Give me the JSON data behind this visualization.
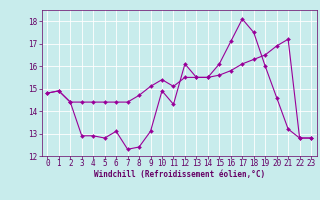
{
  "xlabel": "Windchill (Refroidissement éolien,°C)",
  "background_color": "#c8ecec",
  "line_color": "#990099",
  "grid_color": "#ffffff",
  "x": [
    0,
    1,
    2,
    3,
    4,
    5,
    6,
    7,
    8,
    9,
    10,
    11,
    12,
    13,
    14,
    15,
    16,
    17,
    18,
    19,
    20,
    21,
    22,
    23
  ],
  "line1": [
    14.8,
    14.9,
    14.4,
    12.9,
    12.9,
    12.8,
    13.1,
    12.3,
    12.4,
    13.1,
    14.9,
    14.3,
    16.1,
    15.5,
    15.5,
    16.1,
    17.1,
    18.1,
    17.5,
    16.0,
    14.6,
    13.2,
    12.8,
    12.8
  ],
  "line2": [
    14.8,
    14.9,
    14.4,
    14.4,
    14.4,
    14.4,
    14.4,
    14.4,
    14.7,
    15.1,
    15.4,
    15.1,
    15.5,
    15.5,
    15.5,
    15.6,
    15.8,
    16.1,
    16.3,
    16.5,
    16.9,
    17.2,
    12.8,
    12.8
  ],
  "ylim": [
    12,
    18.5
  ],
  "xlim": [
    -0.5,
    23.5
  ],
  "yticks": [
    12,
    13,
    14,
    15,
    16,
    17,
    18
  ],
  "xticks": [
    0,
    1,
    2,
    3,
    4,
    5,
    6,
    7,
    8,
    9,
    10,
    11,
    12,
    13,
    14,
    15,
    16,
    17,
    18,
    19,
    20,
    21,
    22,
    23
  ],
  "tick_color": "#660066",
  "spine_color": "#660066",
  "label_fontsize": 5.5,
  "xlabel_fontsize": 5.5
}
